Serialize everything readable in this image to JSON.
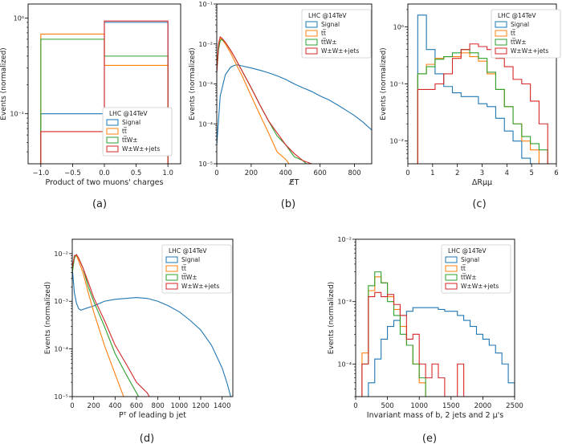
{
  "colors": {
    "Signal": "#1f77b4",
    "ttbar": "#ff7f0e",
    "ttW": "#2ca02c",
    "WWjets": "#d62728"
  },
  "legend_title": "LHC @14TeV",
  "legend_entries": [
    "Signal",
    "tt̅",
    "tt̅W±",
    "W±W±+jets"
  ],
  "chart_data": [
    {
      "id": "a",
      "caption": "(a)",
      "type": "histogram",
      "log_y": true,
      "legend_position": "lower-right",
      "xlabel": "Product of two muons' charges",
      "ylabel": "Events (normalized)",
      "xlim": [
        -1.2,
        1.2
      ],
      "ylim": [
        0.03,
        1.4
      ],
      "xticks": [
        -1.0,
        -0.5,
        0.0,
        0.5,
        1.0
      ],
      "xtick_labels": [
        "−1.0",
        "−0.5",
        "0.0",
        "0.5",
        "1.0"
      ],
      "yticks": [
        0.1,
        1
      ],
      "ytick_labels": [
        "10⁻¹",
        "10⁰"
      ],
      "edges": [
        -1.0,
        0.0,
        1.0
      ],
      "series": [
        {
          "key": "Signal",
          "values": [
            0.1,
            0.9
          ]
        },
        {
          "key": "ttbar",
          "values": [
            0.68,
            0.32
          ]
        },
        {
          "key": "ttW",
          "values": [
            0.6,
            0.4
          ]
        },
        {
          "key": "WWjets",
          "values": [
            0.065,
            0.93
          ]
        }
      ]
    },
    {
      "id": "b",
      "caption": "(b)",
      "type": "step",
      "log_y": true,
      "legend_position": "top-right",
      "xlabel": "E̸T",
      "ylabel": "Events (normalized)",
      "xlim": [
        0,
        900
      ],
      "ylim": [
        1e-05,
        0.1
      ],
      "xticks": [
        0,
        200,
        400,
        600,
        800
      ],
      "xtick_labels": [
        "0",
        "200",
        "400",
        "600",
        "800"
      ],
      "yticks": [
        1e-05,
        0.0001,
        0.001,
        0.01,
        0.1
      ],
      "ytick_labels": [
        "10⁻⁵",
        "10⁻⁴",
        "10⁻³",
        "10⁻²",
        "10⁻¹"
      ],
      "series": [
        {
          "key": "Signal",
          "x": [
            0,
            20,
            50,
            80,
            100,
            120,
            150,
            200,
            250,
            300,
            350,
            400,
            450,
            500,
            550,
            600,
            650,
            700,
            750,
            800,
            850,
            900
          ],
          "y": [
            3e-05,
            0.0005,
            0.0017,
            0.0026,
            0.0029,
            0.003,
            0.0028,
            0.0025,
            0.0022,
            0.0019,
            0.0016,
            0.0013,
            0.001,
            0.0008,
            0.00065,
            0.0005,
            0.0004,
            0.0003,
            0.00022,
            0.00016,
            0.00011,
            7e-05
          ]
        },
        {
          "key": "ttbar",
          "x": [
            0,
            10,
            20,
            30,
            50,
            80,
            100,
            150,
            200,
            250,
            300,
            350,
            400,
            420
          ],
          "y": [
            0.002,
            0.008,
            0.014,
            0.013,
            0.01,
            0.006,
            0.004,
            0.0015,
            0.0005,
            0.00017,
            6e-05,
            2e-05,
            1.3e-05,
            1e-05
          ]
        },
        {
          "key": "ttW",
          "x": [
            0,
            10,
            20,
            30,
            50,
            80,
            100,
            150,
            200,
            250,
            300,
            350,
            400,
            450,
            500,
            520
          ],
          "y": [
            0.002,
            0.007,
            0.012,
            0.013,
            0.011,
            0.007,
            0.005,
            0.002,
            0.0008,
            0.0003,
            0.00012,
            5e-05,
            3e-05,
            1.5e-05,
            1.2e-05,
            1e-05
          ]
        },
        {
          "key": "WWjets",
          "x": [
            0,
            10,
            20,
            30,
            50,
            80,
            100,
            150,
            200,
            250,
            300,
            350,
            400,
            450,
            500,
            550,
            560
          ],
          "y": [
            0.002,
            0.01,
            0.015,
            0.014,
            0.011,
            0.007,
            0.005,
            0.002,
            0.0008,
            0.0003,
            0.00012,
            6e-05,
            3e-05,
            1.8e-05,
            1.2e-05,
            1e-05,
            1e-05
          ]
        }
      ]
    },
    {
      "id": "c",
      "caption": "(c)",
      "type": "histogram",
      "log_y": true,
      "legend_position": "top-right",
      "xlabel": "ΔRμμ",
      "ylabel": "Events (normalized)",
      "xlim": [
        0,
        6
      ],
      "ylim": [
        0.004,
        2.5
      ],
      "xticks": [
        0,
        1,
        2,
        3,
        4,
        5,
        6
      ],
      "xtick_labels": [
        "0",
        "1",
        "2",
        "3",
        "4",
        "5",
        "6"
      ],
      "yticks": [
        0.01,
        0.1,
        1
      ],
      "ytick_labels": [
        "10⁻²",
        "10⁻¹",
        "10⁰"
      ],
      "edges": [
        0.4,
        0.75,
        1.1,
        1.45,
        1.8,
        2.15,
        2.5,
        2.85,
        3.2,
        3.55,
        3.9,
        4.25,
        4.6,
        4.95,
        5.3,
        5.65
      ],
      "series": [
        {
          "key": "Signal",
          "values": [
            1.6,
            0.4,
            0.15,
            0.09,
            0.07,
            0.06,
            0.06,
            0.045,
            0.04,
            0.025,
            0.015,
            0.01,
            0.005,
            0.004,
            0.004
          ]
        },
        {
          "key": "ttbar",
          "values": [
            0.15,
            0.22,
            0.28,
            0.3,
            0.3,
            0.35,
            0.3,
            0.25,
            0.15,
            0.08,
            0.04,
            0.02,
            0.01,
            0.007,
            0.004
          ]
        },
        {
          "key": "ttW",
          "values": [
            0.15,
            0.2,
            0.27,
            0.3,
            0.35,
            0.4,
            0.35,
            0.28,
            0.16,
            0.08,
            0.04,
            0.02,
            0.012,
            0.009,
            0.007
          ]
        },
        {
          "key": "WWjets",
          "values": [
            0.08,
            0.08,
            0.1,
            0.15,
            0.28,
            0.4,
            0.5,
            0.45,
            0.4,
            0.28,
            0.2,
            0.12,
            0.1,
            0.05,
            0.02
          ]
        }
      ]
    },
    {
      "id": "d",
      "caption": "(d)",
      "type": "step",
      "log_y": true,
      "legend_position": "top-right",
      "xlabel": "Pᵀ of leading b jet",
      "ylabel": "Events (normalized)",
      "xlim": [
        0,
        1500
      ],
      "ylim": [
        1e-05,
        0.02
      ],
      "xticks": [
        0,
        200,
        400,
        600,
        800,
        1000,
        1200,
        1400
      ],
      "xtick_labels": [
        "0",
        "200",
        "400",
        "600",
        "800",
        "1000",
        "1200",
        "1400"
      ],
      "yticks": [
        1e-05,
        0.0001,
        0.001,
        0.01
      ],
      "ytick_labels": [
        "10⁻⁵",
        "10⁻⁴",
        "10⁻³",
        "10⁻²"
      ],
      "series": [
        {
          "key": "Signal",
          "x": [
            0,
            20,
            40,
            60,
            80,
            120,
            200,
            300,
            400,
            500,
            600,
            700,
            800,
            900,
            1000,
            1100,
            1200,
            1300,
            1400,
            1450,
            1480,
            1500
          ],
          "y": [
            0.005,
            0.0015,
            0.0009,
            0.0007,
            0.00065,
            0.0007,
            0.0008,
            0.001,
            0.0011,
            0.00115,
            0.0012,
            0.00115,
            0.001,
            0.0008,
            0.0006,
            0.0004,
            0.00025,
            0.00012,
            4e-05,
            1.8e-05,
            1e-05,
            1e-05
          ]
        },
        {
          "key": "ttbar",
          "x": [
            0,
            20,
            40,
            60,
            100,
            150,
            200,
            300,
            400,
            450,
            480
          ],
          "y": [
            0.004,
            0.009,
            0.009,
            0.007,
            0.004,
            0.0015,
            0.0006,
            0.00012,
            3e-05,
            1.5e-05,
            1e-05
          ]
        },
        {
          "key": "ttW",
          "x": [
            0,
            20,
            40,
            60,
            100,
            150,
            200,
            300,
            400,
            500,
            600,
            620
          ],
          "y": [
            0.004,
            0.008,
            0.0095,
            0.008,
            0.005,
            0.002,
            0.001,
            0.0003,
            8e-05,
            3e-05,
            1.2e-05,
            1e-05
          ]
        },
        {
          "key": "WWjets",
          "x": [
            0,
            20,
            40,
            60,
            100,
            150,
            200,
            300,
            400,
            500,
            600,
            700,
            720
          ],
          "y": [
            0.005,
            0.009,
            0.0095,
            0.008,
            0.005,
            0.0025,
            0.0012,
            0.0004,
            0.00012,
            5e-05,
            2e-05,
            1.2e-05,
            1e-05
          ]
        }
      ]
    },
    {
      "id": "e",
      "caption": "(e)",
      "type": "histogram",
      "log_y": true,
      "legend_position": "top-right",
      "xlabel": "Invariant mass of b, 2 jets and 2 μ's",
      "ylabel": "Events (normalized)",
      "xlim": [
        0,
        2500
      ],
      "ylim": [
        3e-05,
        0.01
      ],
      "xticks": [
        0,
        500,
        1000,
        1500,
        2000,
        2500
      ],
      "xtick_labels": [
        "0",
        "500",
        "1000",
        "1500",
        "2000",
        "2500"
      ],
      "yticks": [
        0.0001,
        0.001,
        0.01
      ],
      "ytick_labels": [
        "10⁻⁴",
        "10⁻³",
        "10⁻²"
      ],
      "edges": [
        0,
        100,
        200,
        300,
        400,
        500,
        600,
        700,
        800,
        900,
        1000,
        1100,
        1200,
        1300,
        1400,
        1500,
        1600,
        1700,
        1800,
        1900,
        2000,
        2100,
        2200,
        2300,
        2400,
        2500
      ],
      "series": [
        {
          "key": "Signal",
          "values": [
            3e-05,
            3e-05,
            5e-05,
            0.00012,
            0.00025,
            0.0004,
            0.0005,
            0.0006,
            0.0007,
            0.0008,
            0.0008,
            0.0008,
            0.0008,
            0.00075,
            0.0007,
            0.0007,
            0.0006,
            0.0005,
            0.0004,
            0.0003,
            0.00025,
            0.0002,
            0.00015,
            0.0001,
            5e-05
          ]
        },
        {
          "key": "ttbar",
          "values": [
            3e-05,
            0.00015,
            0.0015,
            0.0025,
            0.002,
            0.0012,
            0.00075,
            0.0004,
            0.0002,
            0.0001,
            5e-05,
            3e-05,
            3e-05,
            3e-05,
            3e-05,
            3e-05,
            3e-05,
            3e-05,
            3e-05,
            3e-05,
            3e-05,
            3e-05,
            3e-05,
            3e-05,
            3e-05
          ]
        },
        {
          "key": "ttW",
          "values": [
            3e-05,
            0.0001,
            0.0018,
            0.003,
            0.002,
            0.001,
            0.0006,
            0.0003,
            0.0002,
            0.0001,
            6e-05,
            3e-05,
            3e-05,
            3e-05,
            3e-05,
            3e-05,
            3e-05,
            3e-05,
            3e-05,
            3e-05,
            3e-05,
            3e-05,
            3e-05,
            3e-05,
            3e-05
          ]
        },
        {
          "key": "WWjets",
          "values": [
            3e-05,
            0.0001,
            0.0012,
            0.0014,
            0.0012,
            0.0013,
            0.0009,
            0.0006,
            0.00025,
            0.0003,
            0.0001,
            6e-05,
            0.0001,
            6e-05,
            3e-05,
            3e-05,
            0.0001,
            3e-05,
            3e-05,
            3e-05,
            3e-05,
            3e-05,
            3e-05,
            3e-05,
            3e-05
          ]
        }
      ]
    }
  ]
}
